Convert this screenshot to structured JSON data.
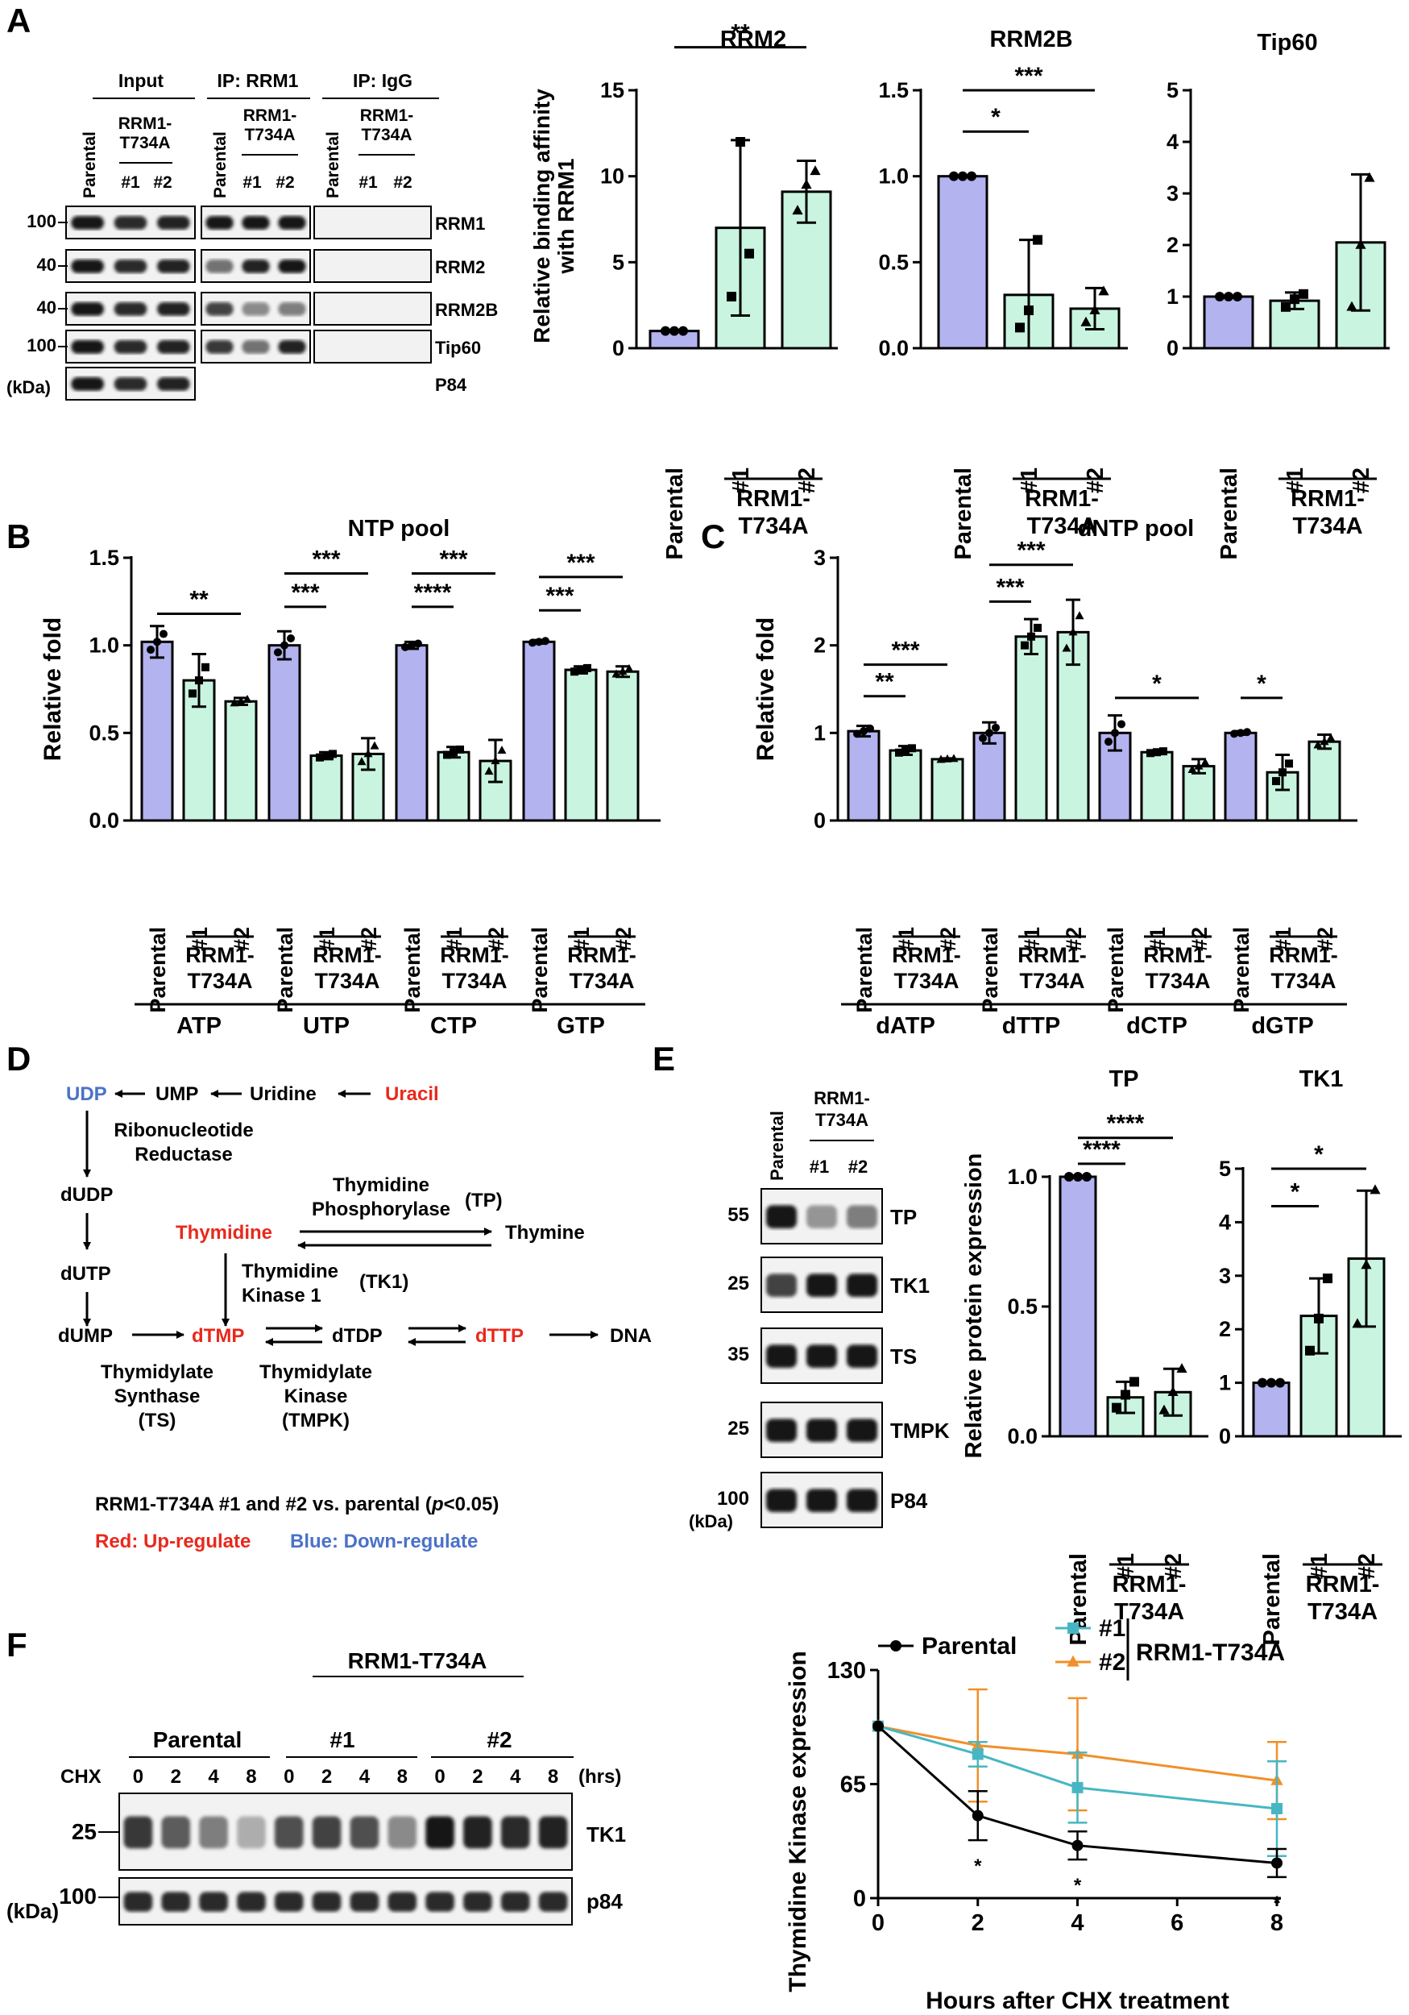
{
  "colors": {
    "purple": "#b3b3f0",
    "green": "#c9f5e0",
    "red": "#e8291c",
    "blue": "#4a72c9",
    "teal": "#46b7c2",
    "orange": "#f0902a",
    "black": "#000000"
  },
  "panels": [
    "A",
    "B",
    "C",
    "D",
    "E",
    "F"
  ],
  "common": {
    "parental": "Parental",
    "rep1": "#1",
    "rep2": "#2",
    "mutant_line1": "RRM1-",
    "mutant_line2": "T734A",
    "mutant_full": "RRM1-T734A",
    "kda": "(kDa)"
  },
  "panel_a": {
    "blot": {
      "groups": [
        "Input",
        "IP: RRM1",
        "IP: IgG"
      ],
      "rows": [
        {
          "label": "RRM1",
          "marker": "100"
        },
        {
          "label": "RRM2",
          "marker": "40"
        },
        {
          "label": "RRM2B",
          "marker": "40"
        },
        {
          "label": "Tip60",
          "marker": "100"
        },
        {
          "label": "P84",
          "marker": ""
        }
      ],
      "loading_bands": [
        1.0,
        0.9,
        0.95
      ],
      "ip_bands": [
        [
          1.0,
          1.0,
          1.0
        ],
        [
          0.6,
          0.95,
          1.0
        ],
        [
          0.8,
          0.5,
          0.55
        ],
        [
          0.85,
          0.6,
          0.95
        ],
        [
          null,
          null,
          null
        ]
      ]
    },
    "ylabel_line1": "Relative binding affinity",
    "ylabel_line2": "with RRM1"
  },
  "chart_data": [
    {
      "type": "bar",
      "panel": "A",
      "title": "RRM2",
      "categories": [
        "Parental",
        "#1",
        "#2"
      ],
      "values": [
        1.0,
        7.0,
        9.1
      ],
      "errors": [
        0.0,
        5.1,
        1.8
      ],
      "points": [
        [
          1.0,
          1.0,
          1.0
        ],
        [
          3.0,
          12.0,
          5.5
        ],
        [
          8.0,
          9.5,
          10.3
        ]
      ],
      "ylim": [
        0,
        15
      ],
      "yticks": [
        0,
        5,
        10,
        15
      ],
      "ylabel": "Relative binding affinity with RRM1",
      "significance": [
        {
          "from": 0,
          "to": 2,
          "label": "**",
          "level": 17.5
        }
      ]
    },
    {
      "type": "bar",
      "panel": "A",
      "title": "RRM2B",
      "categories": [
        "Parental",
        "#1",
        "#2"
      ],
      "values": [
        1.0,
        0.31,
        0.23
      ],
      "errors": [
        0.0,
        0.32,
        0.12
      ],
      "points": [
        [
          1.0,
          1.0,
          1.0
        ],
        [
          0.12,
          0.22,
          0.63
        ],
        [
          0.15,
          0.22,
          0.33
        ]
      ],
      "ylim": [
        0,
        1.5
      ],
      "yticks": [
        0.0,
        0.5,
        1.0,
        1.5
      ],
      "ylabel": "",
      "significance": [
        {
          "from": 0,
          "to": 1,
          "label": "*",
          "level": 1.26
        },
        {
          "from": 0,
          "to": 2,
          "label": "***",
          "level": 1.5
        }
      ]
    },
    {
      "type": "bar",
      "panel": "A",
      "title": "Tip60",
      "categories": [
        "Parental",
        "#1",
        "#2"
      ],
      "values": [
        1.0,
        0.92,
        2.05
      ],
      "errors": [
        0.0,
        0.16,
        1.32
      ],
      "points": [
        [
          1.0,
          1.0,
          1.0
        ],
        [
          0.8,
          0.95,
          1.05
        ],
        [
          0.8,
          2.0,
          3.3
        ]
      ],
      "ylim": [
        0,
        5
      ],
      "yticks": [
        0,
        1,
        2,
        3,
        4,
        5
      ],
      "ylabel": "",
      "significance": []
    },
    {
      "type": "bar",
      "panel": "B",
      "title": "NTP pool",
      "groups": [
        "ATP",
        "UTP",
        "CTP",
        "GTP"
      ],
      "categories": [
        "Parental",
        "#1",
        "#2"
      ],
      "values": [
        [
          1.02,
          0.8,
          0.68
        ],
        [
          1.0,
          0.37,
          0.38
        ],
        [
          1.0,
          0.39,
          0.34
        ],
        [
          1.02,
          0.86,
          0.85
        ]
      ],
      "errors": [
        [
          0.09,
          0.15,
          0.02
        ],
        [
          0.08,
          0.02,
          0.09
        ],
        [
          0.02,
          0.03,
          0.12
        ],
        [
          0.01,
          0.02,
          0.03
        ]
      ],
      "ylim": [
        0,
        1.5
      ],
      "yticks": [
        0.0,
        0.5,
        1.0,
        1.5
      ],
      "ylabel": "Relative fold",
      "significance": [
        {
          "group": 0,
          "from": 0,
          "to": 2,
          "label": "**",
          "level": 1.18
        },
        {
          "group": 1,
          "from": 0,
          "to": 1,
          "label": "***",
          "level": 1.22
        },
        {
          "group": 1,
          "from": 0,
          "to": 2,
          "label": "***",
          "level": 1.41
        },
        {
          "group": 2,
          "from": 0,
          "to": 1,
          "label": "****",
          "level": 1.22
        },
        {
          "group": 2,
          "from": 0,
          "to": 2,
          "label": "***",
          "level": 1.41
        },
        {
          "group": 3,
          "from": 0,
          "to": 1,
          "label": "***",
          "level": 1.2
        },
        {
          "group": 3,
          "from": 0,
          "to": 2,
          "label": "***",
          "level": 1.39
        }
      ]
    },
    {
      "type": "bar",
      "panel": "C",
      "title": "dNTP pool",
      "groups": [
        "dATP",
        "dTTP",
        "dCTP",
        "dGTP"
      ],
      "categories": [
        "Parental",
        "#1",
        "#2"
      ],
      "values": [
        [
          1.02,
          0.8,
          0.7
        ],
        [
          1.0,
          2.1,
          2.15
        ],
        [
          1.0,
          0.78,
          0.62
        ],
        [
          1.0,
          0.55,
          0.9
        ]
      ],
      "errors": [
        [
          0.06,
          0.05,
          0.01
        ],
        [
          0.12,
          0.2,
          0.37
        ],
        [
          0.2,
          0.02,
          0.08
        ],
        [
          0.02,
          0.2,
          0.08
        ]
      ],
      "ylim": [
        0,
        3
      ],
      "yticks": [
        0,
        1,
        2,
        3
      ],
      "ylabel": "Relative fold",
      "significance": [
        {
          "group": 0,
          "from": 0,
          "to": 1,
          "label": "**",
          "level": 1.42
        },
        {
          "group": 0,
          "from": 0,
          "to": 2,
          "label": "***",
          "level": 1.78
        },
        {
          "group": 1,
          "from": 0,
          "to": 1,
          "label": "***",
          "level": 2.5
        },
        {
          "group": 1,
          "from": 0,
          "to": 2,
          "label": "***",
          "level": 2.92
        },
        {
          "group": 2,
          "from": 0,
          "to": 2,
          "label": "*",
          "level": 1.4
        },
        {
          "group": 3,
          "from": 0,
          "to": 1,
          "label": "*",
          "level": 1.4
        }
      ]
    },
    {
      "type": "bar",
      "panel": "E",
      "title": "TP",
      "categories": [
        "Parental",
        "#1",
        "#2"
      ],
      "values": [
        1.0,
        0.15,
        0.17
      ],
      "errors": [
        0.0,
        0.06,
        0.09
      ],
      "points": [
        [
          1.0,
          1.0,
          1.0
        ],
        [
          0.11,
          0.16,
          0.21
        ],
        [
          0.1,
          0.17,
          0.26
        ]
      ],
      "ylim": [
        0,
        1.0
      ],
      "yticks": [
        0.0,
        0.5,
        1.0
      ],
      "ylabel": "Relative protein expression",
      "significance": [
        {
          "from": 0,
          "to": 1,
          "label": "****",
          "level": 1.05
        },
        {
          "from": 0,
          "to": 2,
          "label": "****",
          "level": 1.15
        }
      ]
    },
    {
      "type": "bar",
      "panel": "E",
      "title": "TK1",
      "categories": [
        "Parental",
        "#1",
        "#2"
      ],
      "values": [
        1.0,
        2.25,
        3.32
      ],
      "errors": [
        0.0,
        0.7,
        1.27
      ],
      "points": [
        [
          1.0,
          1.0,
          1.0
        ],
        [
          1.6,
          2.2,
          2.95
        ],
        [
          2.1,
          3.2,
          4.6
        ]
      ],
      "ylim": [
        0,
        5
      ],
      "yticks": [
        0,
        1,
        2,
        3,
        4,
        5
      ],
      "ylabel": "",
      "significance": [
        {
          "from": 0,
          "to": 1,
          "label": "*",
          "level": 4.3
        },
        {
          "from": 0,
          "to": 2,
          "label": "*",
          "level": 5.0
        }
      ]
    },
    {
      "type": "line",
      "panel": "F",
      "title": "",
      "xlabel": "Hours after CHX treatment",
      "ylabel": "Thymidine Kinase expression",
      "x": [
        0,
        2,
        4,
        8
      ],
      "xlim": [
        0,
        8
      ],
      "xticks": [
        0,
        2,
        4,
        6,
        8
      ],
      "ylim": [
        0,
        130
      ],
      "yticks": [
        0,
        65,
        130
      ],
      "series": [
        {
          "name": "Parental",
          "color": "#000000",
          "marker": "circle",
          "values": [
            98,
            47,
            30,
            20
          ],
          "errors": [
            0,
            14,
            8,
            8
          ]
        },
        {
          "name": "#1",
          "color": "#46b7c2",
          "marker": "square",
          "values": [
            98,
            82,
            63,
            51
          ],
          "errors": [
            0,
            7,
            20,
            27
          ]
        },
        {
          "name": "#2",
          "color": "#f0902a",
          "marker": "triangle",
          "values": [
            98,
            87,
            82,
            67
          ],
          "errors": [
            0,
            32,
            32,
            22
          ]
        }
      ],
      "legend_group": "RRM1-T734A",
      "annotations": [
        "*",
        "*",
        "*"
      ]
    }
  ],
  "panel_d": {
    "UDP": "UDP",
    "UMP": "UMP",
    "Uridine": "Uridine",
    "Uracil": "Uracil",
    "rnr_line1": "Ribonucleotide",
    "rnr_line2": "Reductase",
    "dUDP": "dUDP",
    "dUTP": "dUTP",
    "dUMP": "dUMP",
    "Thymidine": "Thymidine",
    "tp_line1": "Thymidine",
    "tp_line2": "Phosphorylase",
    "tp_abbr": "(TP)",
    "Thymine": "Thymine",
    "tk_line1": "Thymidine",
    "tk_line2": "Kinase 1",
    "tk_abbr": "(TK1)",
    "dTMP": "dTMP",
    "dTDP": "dTDP",
    "dTTP": "dTTP",
    "DNA": "DNA",
    "ts_line1": "Thymidylate",
    "ts_line2": "Synthase",
    "ts_line3": "(TS)",
    "tmpk_line1": "Thymidylate",
    "tmpk_line2": "Kinase",
    "tmpk_line3": "(TMPK)",
    "note_prefix": "RRM1-T734A #1 and #2 vs. parental (",
    "note_p": "p",
    "note_suffix": "<0.05)",
    "legend_red": "Red: Up-regulate",
    "legend_blue": "Blue: Down-regulate"
  },
  "panel_e": {
    "rows": [
      {
        "label": "TP",
        "marker": "55"
      },
      {
        "label": "TK1",
        "marker": "25"
      },
      {
        "label": "TS",
        "marker": "35"
      },
      {
        "label": "TMPK",
        "marker": "25"
      },
      {
        "label": "P84",
        "marker": "100"
      }
    ],
    "bands": [
      [
        1.0,
        0.45,
        0.55
      ],
      [
        0.8,
        1.0,
        1.0
      ],
      [
        1.0,
        1.0,
        1.0
      ],
      [
        1.0,
        1.0,
        1.0
      ],
      [
        1.0,
        1.0,
        1.0
      ]
    ]
  },
  "panel_f": {
    "groups": [
      "Parental",
      "#1",
      "#2"
    ],
    "mutant": "RRM1-T734A",
    "chx": "CHX",
    "hours": [
      "0",
      "2",
      "4",
      "8"
    ],
    "hrs": "(hrs)",
    "rows": [
      {
        "label": "TK1",
        "marker": "25"
      },
      {
        "label": "p84",
        "marker": "100"
      }
    ],
    "tk1_bands": [
      0.85,
      0.7,
      0.55,
      0.35,
      0.75,
      0.8,
      0.75,
      0.5,
      1.0,
      0.95,
      0.9,
      0.95
    ]
  }
}
